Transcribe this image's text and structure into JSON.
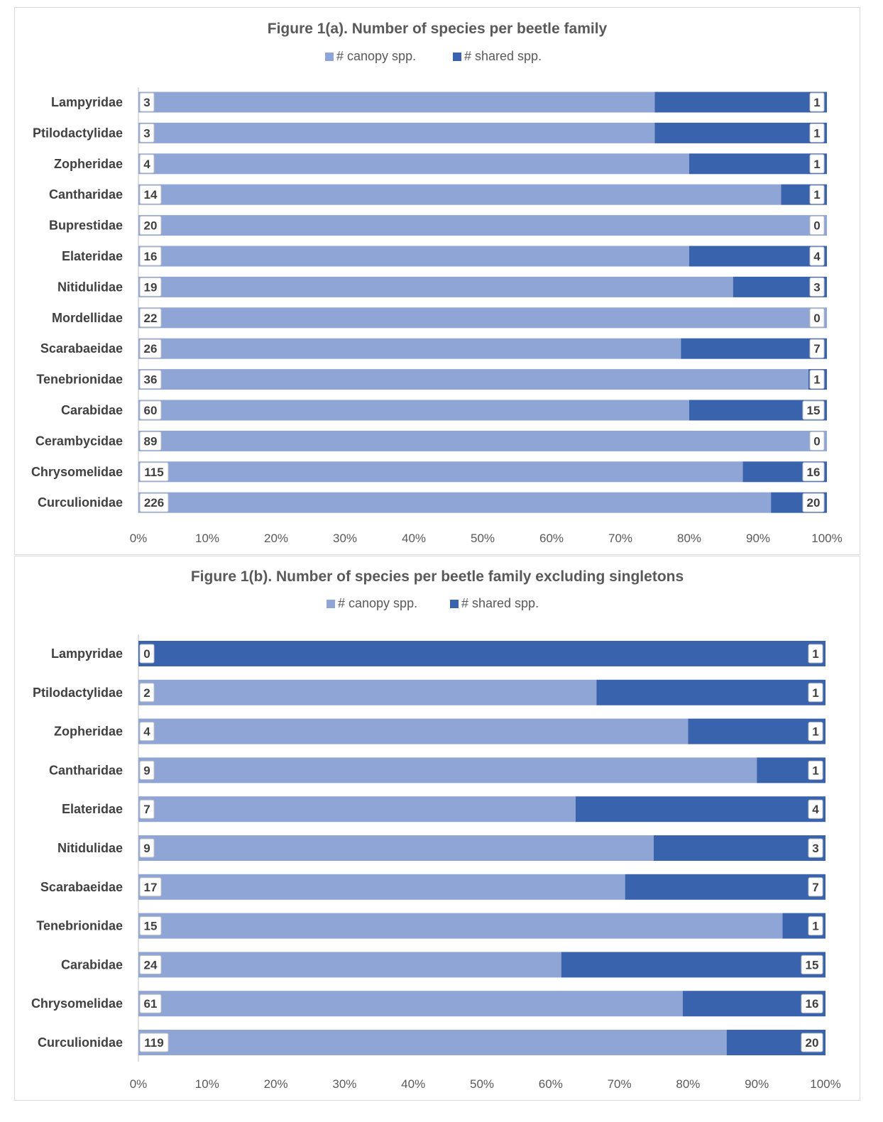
{
  "colors": {
    "canopy": "#8EA5D6",
    "shared": "#3A63AE",
    "axis": "#BFBFBF",
    "label_bg": "#FFFFFF",
    "label_border": "#BFBFBF"
  },
  "chart_data": [
    {
      "type": "bar",
      "orientation": "horizontal",
      "stacking": "percent",
      "title": "Figure 1(a). Number of species per beetle family",
      "legend_position": "top",
      "categories": [
        "Lampyridae",
        "Ptilodactylidae",
        "Zopheridae",
        "Cantharidae",
        "Buprestidae",
        "Elateridae",
        "Nitidulidae",
        "Mordellidae",
        "Scarabaeidae",
        "Tenebrionidae",
        "Carabidae",
        "Cerambycidae",
        "Chrysomelidae",
        "Curculionidae"
      ],
      "series": [
        {
          "name": "# canopy spp.",
          "values": [
            3,
            3,
            4,
            14,
            20,
            16,
            19,
            22,
            26,
            36,
            60,
            89,
            115,
            226
          ]
        },
        {
          "name": "# shared spp.",
          "values": [
            1,
            1,
            1,
            1,
            0,
            4,
            3,
            0,
            7,
            1,
            15,
            0,
            16,
            20
          ]
        }
      ],
      "xticks": [
        "0%",
        "10%",
        "20%",
        "30%",
        "40%",
        "50%",
        "60%",
        "70%",
        "80%",
        "90%",
        "100%"
      ],
      "xlim": [
        0,
        100
      ],
      "grid": false
    },
    {
      "type": "bar",
      "orientation": "horizontal",
      "stacking": "percent",
      "title": "Figure 1(b). Number of species per beetle family excluding singletons",
      "legend_position": "top",
      "categories": [
        "Lampyridae",
        "Ptilodactylidae",
        "Zopheridae",
        "Cantharidae",
        "Elateridae",
        "Nitidulidae",
        "Scarabaeidae",
        "Tenebrionidae",
        "Carabidae",
        "Chrysomelidae",
        "Curculionidae"
      ],
      "series": [
        {
          "name": "# canopy spp.",
          "values": [
            0,
            2,
            4,
            9,
            7,
            9,
            17,
            15,
            24,
            61,
            119
          ]
        },
        {
          "name": "# shared spp.",
          "values": [
            1,
            1,
            1,
            1,
            4,
            3,
            7,
            1,
            15,
            16,
            20
          ]
        }
      ],
      "xticks": [
        "0%",
        "10%",
        "20%",
        "30%",
        "40%",
        "50%",
        "60%",
        "70%",
        "80%",
        "90%",
        "100%"
      ],
      "xlim": [
        0,
        100
      ],
      "grid": false
    }
  ]
}
